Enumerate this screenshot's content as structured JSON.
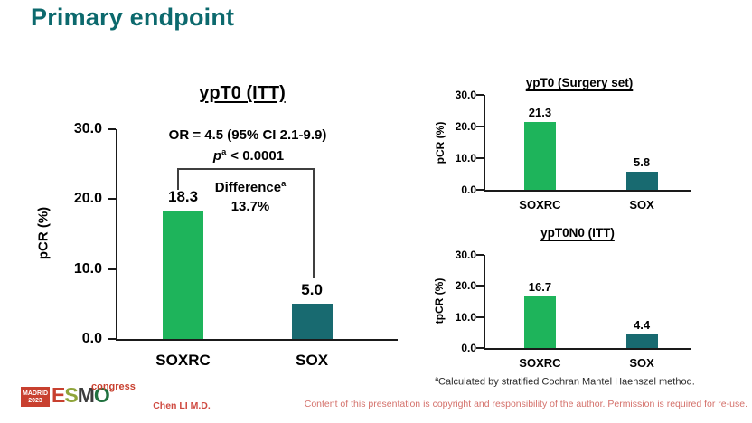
{
  "slide": {
    "title": "Primary endpoint",
    "author": "Chen LI M.D.",
    "copyright": "Content of this presentation is copyright and responsibility of the author. Permission is required for re-use.",
    "footnote": {
      "sup": "a",
      "text": "Calculated by stratified Cochran Mantel Haenszel method."
    },
    "logo": {
      "city": "MADRID",
      "year": "2023",
      "letters": [
        "E",
        "S",
        "M",
        "O"
      ],
      "suffix": "congress"
    }
  },
  "colors": {
    "soxrc_bar": "#1eb45b",
    "sox_bar": "#186a70",
    "title_teal": "#0c696d",
    "accent_red": "#c8402f"
  },
  "chart_data": [
    {
      "id": "main",
      "type": "bar",
      "title": "ypT0 (ITT)",
      "ylabel": "pCR (%)",
      "ylim": [
        0,
        30
      ],
      "yticks": [
        {
          "value": 30,
          "label": "30.0"
        },
        {
          "value": 20,
          "label": "20.0"
        },
        {
          "value": 10,
          "label": "10.0"
        },
        {
          "value": 0,
          "label": "0.0"
        }
      ],
      "categories": [
        "SOXRC",
        "SOX"
      ],
      "values": [
        18.3,
        5.0
      ],
      "value_labels": [
        "18.3",
        "5.0"
      ],
      "annotations": {
        "or": "OR = 4.5 (95% CI 2.1-9.9)",
        "p_symbol": "p",
        "p_sup": "a",
        "p_rest": "< 0.0001",
        "difference_label": "Difference",
        "difference_sup": "a",
        "difference_value": "13.7%"
      }
    },
    {
      "id": "surgery",
      "type": "bar",
      "title": "ypT0 (Surgery set)",
      "ylabel": "pCR (%)",
      "ylim": [
        0,
        30
      ],
      "yticks": [
        {
          "value": 30,
          "label": "30.0"
        },
        {
          "value": 20,
          "label": "20.0"
        },
        {
          "value": 10,
          "label": "10.0"
        },
        {
          "value": 0,
          "label": "0.0"
        }
      ],
      "categories": [
        "SOXRC",
        "SOX"
      ],
      "values": [
        21.3,
        5.8
      ],
      "value_labels": [
        "21.3",
        "5.8"
      ]
    },
    {
      "id": "tono",
      "type": "bar",
      "title": "ypT0N0 (ITT)",
      "ylabel": "tpCR (%)",
      "ylim": [
        0,
        30
      ],
      "yticks": [
        {
          "value": 30,
          "label": "30.0"
        },
        {
          "value": 20,
          "label": "20.0"
        },
        {
          "value": 10,
          "label": "10.0"
        },
        {
          "value": 0,
          "label": "0.0"
        }
      ],
      "categories": [
        "SOXRC",
        "SOX"
      ],
      "values": [
        16.7,
        4.4
      ],
      "value_labels": [
        "16.7",
        "4.4"
      ]
    }
  ]
}
